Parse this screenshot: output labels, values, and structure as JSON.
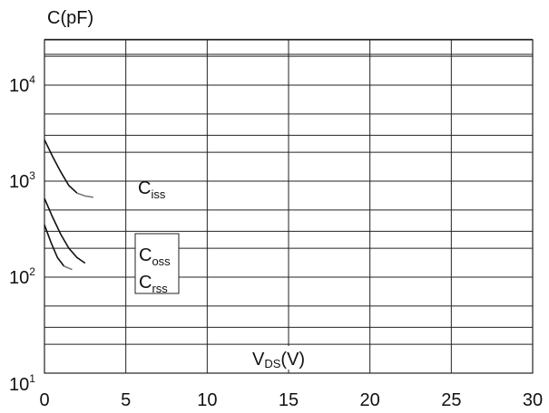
{
  "chart_data": {
    "type": "line",
    "title": "",
    "ylabel": "C(pF)",
    "xlabel": {
      "main": "V",
      "sub": "DS",
      "tail": "(V)"
    },
    "x_ticks": [
      "0",
      "5",
      "10",
      "15",
      "20",
      "25",
      "30"
    ],
    "xlim": [
      0,
      30
    ],
    "y_scale": "log",
    "ylim": [
      10,
      30000
    ],
    "y_ticks": [
      {
        "value": 10,
        "base": "10",
        "exp": "1"
      },
      {
        "value": 100,
        "base": "10",
        "exp": "2"
      },
      {
        "value": 1000,
        "base": "10",
        "exp": "3"
      },
      {
        "value": 10000,
        "base": "10",
        "exp": "4"
      }
    ],
    "grid": true,
    "series": [
      {
        "name": {
          "main": "C",
          "sub": "iss"
        },
        "x": [
          0,
          0.5,
          1,
          1.5,
          2,
          2.5,
          3
        ],
        "y": [
          2700,
          1800,
          1250,
          900,
          750,
          700,
          680
        ]
      },
      {
        "name": {
          "main": "C",
          "sub": "oss"
        },
        "x": [
          0,
          0.5,
          1,
          1.5,
          2,
          2.5
        ],
        "y": [
          660,
          420,
          280,
          200,
          160,
          140
        ]
      },
      {
        "name": {
          "main": "C",
          "sub": "rss"
        },
        "x": [
          0,
          0.4,
          0.8,
          1.2,
          1.7
        ],
        "y": [
          350,
          230,
          160,
          130,
          120
        ]
      }
    ],
    "colors": {
      "axis": "#222222",
      "curve_dark": "#111111",
      "curve_light": "#777777"
    }
  }
}
